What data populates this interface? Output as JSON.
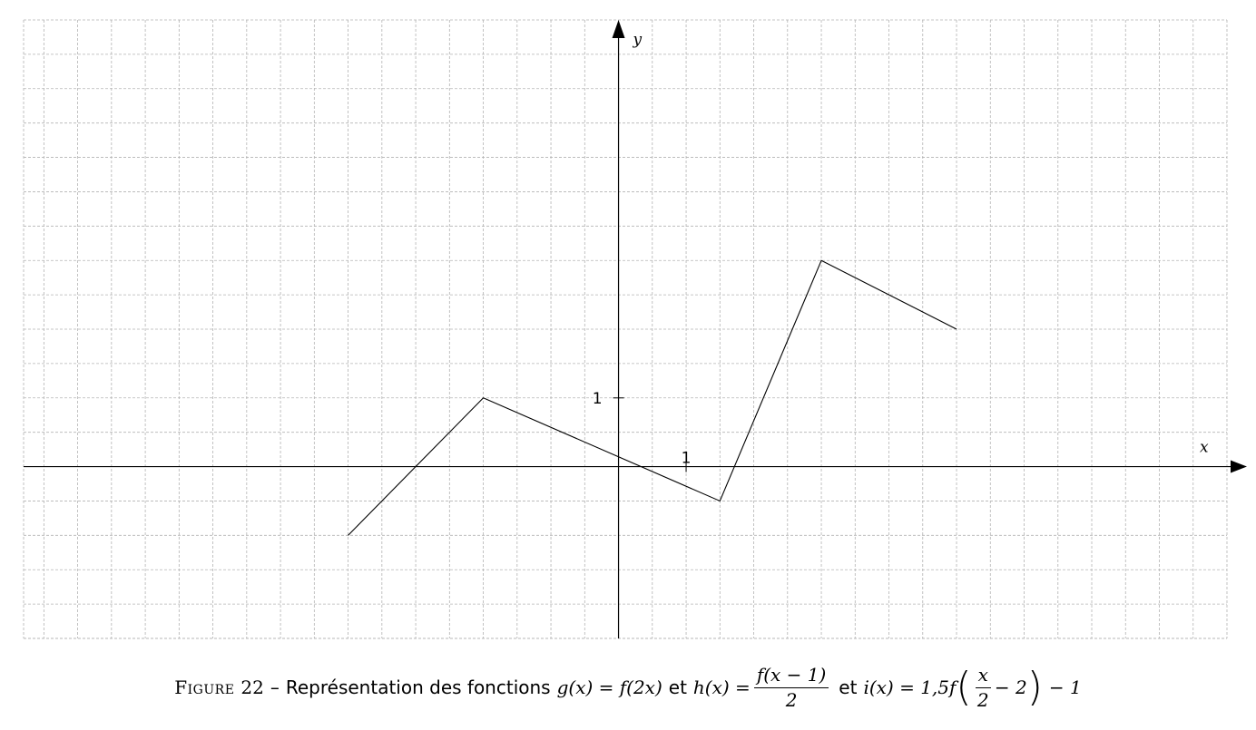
{
  "chart_data": {
    "type": "line",
    "title": "",
    "xlabel": "x",
    "ylabel": "y",
    "xlim": [
      -8.8,
      9.0
    ],
    "ylim": [
      -2.5,
      6.5
    ],
    "grid": true,
    "x_ticks": [
      {
        "value": 1,
        "label": "1"
      }
    ],
    "y_ticks": [
      {
        "value": 1,
        "label": "1"
      }
    ],
    "series": [
      {
        "points": [
          {
            "x": -4,
            "y": -1
          },
          {
            "x": -2,
            "y": 1
          },
          {
            "x": 1.5,
            "y": -0.5
          },
          {
            "x": 3,
            "y": 3
          },
          {
            "x": 5,
            "y": 2
          }
        ]
      }
    ]
  },
  "caption": {
    "figure_word": "Figure",
    "figure_number": "22",
    "dash": "–",
    "text_before": "Représentation des fonctions",
    "g_def": "g(x) = f(2x)",
    "conj1": "et",
    "h_lhs": "h(x) =",
    "h_num": "f(x − 1)",
    "h_den": "2",
    "conj2": "et",
    "i_lhs": "i(x) = 1,5f",
    "i_paren_open": "(",
    "i_num": "x",
    "i_den": "2",
    "i_inner_rest": "− 2",
    "i_paren_close": ")",
    "i_tail": "− 1"
  }
}
